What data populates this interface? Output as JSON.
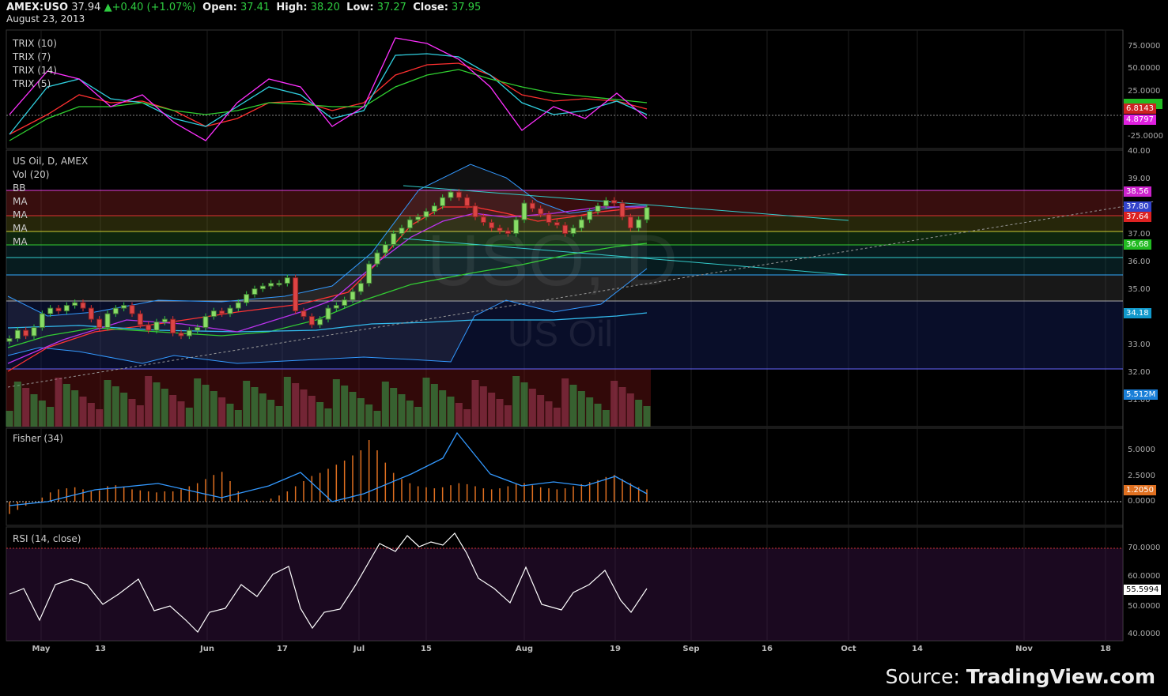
{
  "header": {
    "symbol": "AMEX:USO",
    "last": "37.94",
    "change": "+0.40 (+1.07%)",
    "open_label": "Open:",
    "open": "37.41",
    "high_label": "High:",
    "high": "38.20",
    "low_label": "Low:",
    "low": "37.27",
    "close_label": "Close:",
    "close": "37.95",
    "date": "August 23, 2013"
  },
  "panes": {
    "trix": {
      "labels": [
        "TRIX (10)",
        "TRIX (7)",
        "TRIX (14)",
        "TRIX (5)"
      ],
      "ticks": [
        "75.0000",
        "50.0000",
        "25.0000",
        "-25.0000"
      ],
      "tags": [
        {
          "text": "6.8143",
          "color": "#cc2222"
        },
        {
          "text": "4.8797",
          "color": "#e020e0"
        }
      ]
    },
    "main": {
      "labels": [
        "US Oil, D, AMEX",
        "Vol (20)",
        "BB",
        "MA",
        "MA",
        "MA",
        "MA"
      ],
      "ticks": [
        "40.00",
        "39.00",
        "37.00",
        "36.00",
        "35.00",
        "33.00",
        "32.00",
        "31.00"
      ],
      "tags": [
        {
          "text": "38.56",
          "color": "#cc22cc"
        },
        {
          "text": "37.80",
          "color": "#3344cc"
        },
        {
          "text": "37.64",
          "color": "#dd2222"
        },
        {
          "text": "36.68",
          "color": "#22bb22"
        },
        {
          "text": "34.18",
          "color": "#1199cc"
        },
        {
          "text": "5.512M",
          "color": "#1a7fd8"
        }
      ],
      "watermark_symbol": "USO, D",
      "watermark_name": "US Oil"
    },
    "fisher": {
      "label": "Fisher (34)",
      "ticks": [
        "5.0000",
        "2.5000",
        "0.0000"
      ],
      "tag": {
        "text": "1.2050",
        "color": "#e07020"
      }
    },
    "rsi": {
      "label": "RSI (14, close)",
      "ticks": [
        "70.0000",
        "60.0000",
        "50.0000",
        "40.0000"
      ],
      "tag": {
        "text": "55.5994",
        "color": "#ffffff"
      }
    }
  },
  "xaxis": [
    "May",
    "13",
    "Jun",
    "17",
    "Jul",
    "15",
    "Aug",
    "19",
    "Sep",
    "16",
    "Oct",
    "14",
    "Nov",
    "18"
  ],
  "source": {
    "prefix": "Source: ",
    "brand": "TradingView.com"
  },
  "colors": {
    "up": "#2ecc40",
    "down": "#e03030",
    "grid": "#1e1e1e",
    "trix10": "#ff3030",
    "trix7": "#30d0e0",
    "trix14": "#30d030",
    "trix5": "#ff30ff"
  }
}
